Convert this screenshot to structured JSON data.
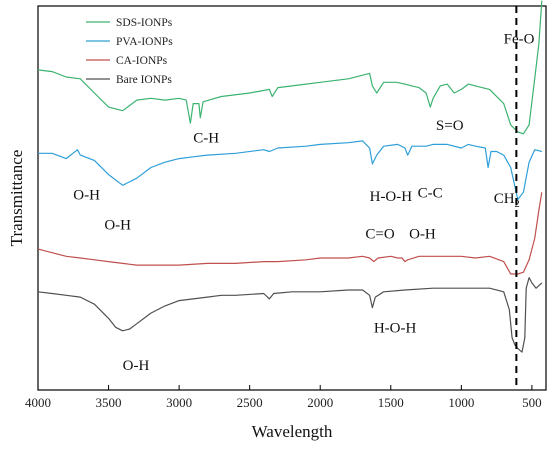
{
  "chart_data": {
    "type": "line",
    "title": "",
    "xlabel": "Wavelength",
    "ylabel": "Transmittance",
    "xlim": [
      4000,
      400
    ],
    "x_reversed": true,
    "x_ticks": [
      4000,
      3500,
      3000,
      2500,
      2000,
      1500,
      1000,
      500
    ],
    "y_ticks_shown": false,
    "grid": false,
    "legend_position": "top-left",
    "reference_line": {
      "x": 610,
      "style": "dashed",
      "label": "Fe-O"
    },
    "series": [
      {
        "name": "SDS-IONPs",
        "color": "#3cb371",
        "points": [
          [
            4000,
            0.775
          ],
          [
            3900,
            0.77
          ],
          [
            3800,
            0.755
          ],
          [
            3700,
            0.75
          ],
          [
            3600,
            0.71
          ],
          [
            3500,
            0.67
          ],
          [
            3400,
            0.66
          ],
          [
            3300,
            0.69
          ],
          [
            3200,
            0.695
          ],
          [
            3100,
            0.69
          ],
          [
            3000,
            0.695
          ],
          [
            2950,
            0.69
          ],
          [
            2920,
            0.625
          ],
          [
            2900,
            0.68
          ],
          [
            2860,
            0.68
          ],
          [
            2850,
            0.64
          ],
          [
            2830,
            0.685
          ],
          [
            2700,
            0.7
          ],
          [
            2500,
            0.71
          ],
          [
            2360,
            0.72
          ],
          [
            2340,
            0.7
          ],
          [
            2300,
            0.725
          ],
          [
            2100,
            0.735
          ],
          [
            2000,
            0.74
          ],
          [
            1800,
            0.75
          ],
          [
            1700,
            0.76
          ],
          [
            1650,
            0.765
          ],
          [
            1630,
            0.73
          ],
          [
            1600,
            0.71
          ],
          [
            1550,
            0.74
          ],
          [
            1460,
            0.74
          ],
          [
            1400,
            0.735
          ],
          [
            1350,
            0.73
          ],
          [
            1300,
            0.725
          ],
          [
            1250,
            0.71
          ],
          [
            1220,
            0.67
          ],
          [
            1200,
            0.695
          ],
          [
            1150,
            0.73
          ],
          [
            1100,
            0.735
          ],
          [
            1050,
            0.71
          ],
          [
            1000,
            0.72
          ],
          [
            950,
            0.735
          ],
          [
            900,
            0.73
          ],
          [
            800,
            0.72
          ],
          [
            700,
            0.68
          ],
          [
            650,
            0.62
          ],
          [
            600,
            0.6
          ],
          [
            560,
            0.595
          ],
          [
            520,
            0.62
          ],
          [
            480,
            0.75
          ],
          [
            450,
            0.85
          ],
          [
            430,
            0.97
          ]
        ]
      },
      {
        "name": "PVA-IONPs",
        "color": "#2e9fd8",
        "points": [
          [
            4000,
            0.54
          ],
          [
            3900,
            0.54
          ],
          [
            3800,
            0.525
          ],
          [
            3720,
            0.55
          ],
          [
            3700,
            0.535
          ],
          [
            3600,
            0.52
          ],
          [
            3500,
            0.48
          ],
          [
            3400,
            0.45
          ],
          [
            3300,
            0.47
          ],
          [
            3200,
            0.5
          ],
          [
            3100,
            0.515
          ],
          [
            3000,
            0.525
          ],
          [
            2900,
            0.53
          ],
          [
            2800,
            0.535
          ],
          [
            2600,
            0.54
          ],
          [
            2400,
            0.55
          ],
          [
            2360,
            0.545
          ],
          [
            2300,
            0.555
          ],
          [
            2100,
            0.56
          ],
          [
            2000,
            0.565
          ],
          [
            1800,
            0.57
          ],
          [
            1700,
            0.575
          ],
          [
            1650,
            0.555
          ],
          [
            1630,
            0.51
          ],
          [
            1600,
            0.535
          ],
          [
            1550,
            0.56
          ],
          [
            1450,
            0.565
          ],
          [
            1400,
            0.555
          ],
          [
            1380,
            0.535
          ],
          [
            1350,
            0.56
          ],
          [
            1250,
            0.56
          ],
          [
            1200,
            0.565
          ],
          [
            1100,
            0.565
          ],
          [
            1000,
            0.555
          ],
          [
            950,
            0.565
          ],
          [
            900,
            0.56
          ],
          [
            830,
            0.555
          ],
          [
            810,
            0.5
          ],
          [
            790,
            0.545
          ],
          [
            750,
            0.545
          ],
          [
            700,
            0.535
          ],
          [
            650,
            0.5
          ],
          [
            600,
            0.41
          ],
          [
            560,
            0.43
          ],
          [
            520,
            0.515
          ],
          [
            480,
            0.55
          ],
          [
            430,
            0.545
          ]
        ]
      },
      {
        "name": "CA-IONPs",
        "color": "#c0504d",
        "points": [
          [
            4000,
            0.27
          ],
          [
            3900,
            0.26
          ],
          [
            3800,
            0.25
          ],
          [
            3700,
            0.245
          ],
          [
            3600,
            0.24
          ],
          [
            3500,
            0.235
          ],
          [
            3400,
            0.23
          ],
          [
            3300,
            0.225
          ],
          [
            3200,
            0.225
          ],
          [
            3000,
            0.225
          ],
          [
            2800,
            0.23
          ],
          [
            2600,
            0.23
          ],
          [
            2400,
            0.235
          ],
          [
            2300,
            0.235
          ],
          [
            2100,
            0.24
          ],
          [
            2000,
            0.245
          ],
          [
            1800,
            0.245
          ],
          [
            1700,
            0.25
          ],
          [
            1650,
            0.245
          ],
          [
            1620,
            0.235
          ],
          [
            1590,
            0.245
          ],
          [
            1500,
            0.25
          ],
          [
            1450,
            0.245
          ],
          [
            1420,
            0.245
          ],
          [
            1400,
            0.235
          ],
          [
            1380,
            0.24
          ],
          [
            1300,
            0.25
          ],
          [
            1200,
            0.25
          ],
          [
            1100,
            0.25
          ],
          [
            1000,
            0.25
          ],
          [
            900,
            0.245
          ],
          [
            800,
            0.25
          ],
          [
            700,
            0.235
          ],
          [
            650,
            0.2
          ],
          [
            600,
            0.2
          ],
          [
            560,
            0.205
          ],
          [
            520,
            0.24
          ],
          [
            480,
            0.3
          ],
          [
            450,
            0.38
          ],
          [
            430,
            0.43
          ]
        ]
      },
      {
        "name": "Bare IONPs",
        "color": "#505050",
        "points": [
          [
            4000,
            0.15
          ],
          [
            3900,
            0.145
          ],
          [
            3800,
            0.14
          ],
          [
            3700,
            0.135
          ],
          [
            3600,
            0.115
          ],
          [
            3500,
            0.075
          ],
          [
            3450,
            0.05
          ],
          [
            3400,
            0.04
          ],
          [
            3350,
            0.045
          ],
          [
            3300,
            0.06
          ],
          [
            3200,
            0.09
          ],
          [
            3100,
            0.11
          ],
          [
            3000,
            0.125
          ],
          [
            2900,
            0.13
          ],
          [
            2800,
            0.135
          ],
          [
            2700,
            0.14
          ],
          [
            2600,
            0.14
          ],
          [
            2400,
            0.145
          ],
          [
            2360,
            0.13
          ],
          [
            2330,
            0.145
          ],
          [
            2200,
            0.15
          ],
          [
            2000,
            0.15
          ],
          [
            1800,
            0.155
          ],
          [
            1700,
            0.155
          ],
          [
            1650,
            0.14
          ],
          [
            1630,
            0.105
          ],
          [
            1610,
            0.135
          ],
          [
            1550,
            0.15
          ],
          [
            1400,
            0.155
          ],
          [
            1200,
            0.16
          ],
          [
            1000,
            0.16
          ],
          [
            900,
            0.16
          ],
          [
            800,
            0.16
          ],
          [
            700,
            0.15
          ],
          [
            660,
            0.1
          ],
          [
            640,
            0.02
          ],
          [
            620,
            0.0
          ],
          [
            600,
            -0.01
          ],
          [
            570,
            -0.02
          ],
          [
            550,
            0.02
          ],
          [
            540,
            0.16
          ],
          [
            520,
            0.19
          ],
          [
            500,
            0.175
          ],
          [
            470,
            0.16
          ],
          [
            430,
            0.175
          ]
        ]
      }
    ],
    "annotations": [
      {
        "text": "Fe-O",
        "x": 700,
        "y": 0.85
      },
      {
        "text": "C-H",
        "x": 2900,
        "y": 0.57
      },
      {
        "text": "S=O",
        "x": 1180,
        "y": 0.605
      },
      {
        "text": "O-H",
        "x": 3750,
        "y": 0.41
      },
      {
        "text": "O-H",
        "x": 3530,
        "y": 0.325
      },
      {
        "text": "H-O-H",
        "x": 1650,
        "y": 0.405
      },
      {
        "text": "C-C",
        "x": 1310,
        "y": 0.415
      },
      {
        "text": "CH",
        "sub": "2",
        "x": 770,
        "y": 0.4
      },
      {
        "text": "C=O",
        "x": 1680,
        "y": 0.3
      },
      {
        "text": "O-H",
        "x": 1370,
        "y": 0.3
      },
      {
        "text": "O-H",
        "x": 3400,
        "y": -0.07
      },
      {
        "text": "H-O-H",
        "x": 1620,
        "y": 0.035
      }
    ]
  }
}
